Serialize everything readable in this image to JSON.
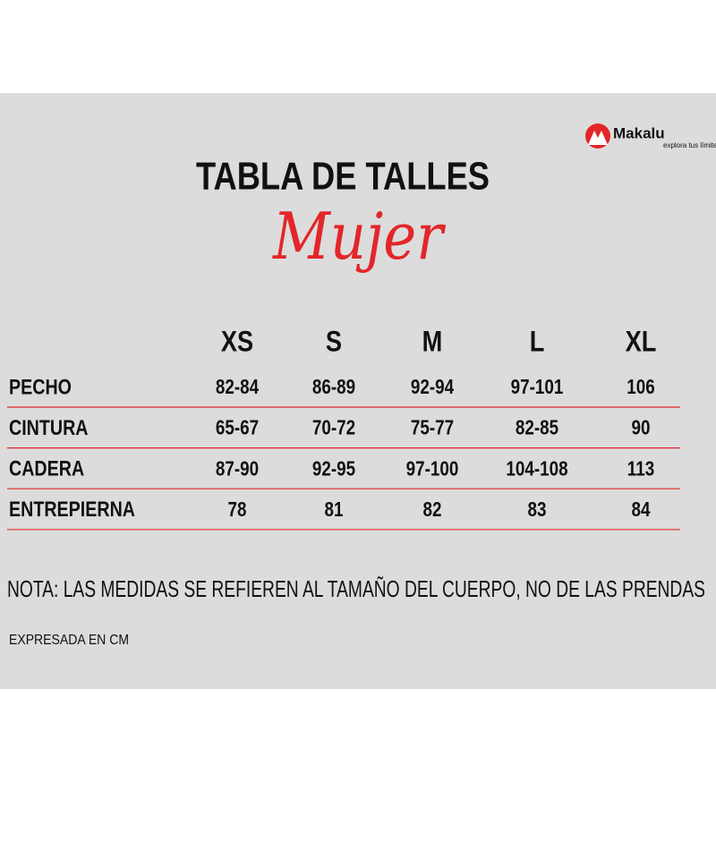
{
  "header": {
    "title": "TABLA DE TALLES",
    "subtitle": "Mujer"
  },
  "logo": {
    "name": "Makalu",
    "tagline": "explora tus límites"
  },
  "table": {
    "columns": [
      "XS",
      "S",
      "M",
      "L",
      "XL"
    ],
    "rows": [
      {
        "label": "PECHO",
        "values": [
          "82-84",
          "86-89",
          "92-94",
          "97-101",
          "106"
        ]
      },
      {
        "label": "CINTURA",
        "values": [
          "65-67",
          "70-72",
          "75-77",
          "82-85",
          "90"
        ]
      },
      {
        "label": "CADERA",
        "values": [
          "87-90",
          "92-95",
          "97-100",
          "104-108",
          "113"
        ]
      },
      {
        "label": "ENTREPIERNA",
        "values": [
          "78",
          "81",
          "82",
          "83",
          "84"
        ]
      }
    ]
  },
  "note": "NOTA: LAS MEDIDAS SE REFIEREN AL TAMAÑO DEL CUERPO, NO DE LAS PRENDAS",
  "unit_note": "EXPRESADA EN CM"
}
